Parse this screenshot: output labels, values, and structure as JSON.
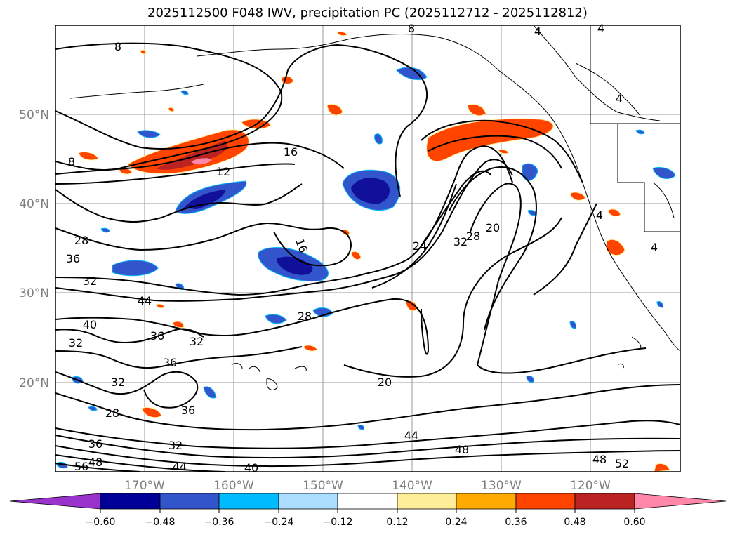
{
  "title": "2025112500 F048 IWV, precipitation PC (2025112712 - 2025112812)",
  "map": {
    "lon_labels": [
      "170°W",
      "160°W",
      "150°W",
      "140°W",
      "130°W",
      "120°W"
    ],
    "lat_labels": [
      "50°N",
      "40°N",
      "30°N",
      "20°N"
    ],
    "contour_labels": [
      "8",
      "8",
      "8",
      "4",
      "4",
      "4",
      "4",
      "4",
      "12",
      "16",
      "16",
      "24",
      "32",
      "28",
      "20",
      "28",
      "36",
      "32",
      "44",
      "40",
      "36",
      "32",
      "32",
      "36",
      "32",
      "28",
      "36",
      "28",
      "36",
      "32",
      "44",
      "40",
      "20",
      "44",
      "48",
      "48",
      "52",
      "48",
      "56"
    ]
  },
  "colorbar": {
    "tick_labels": [
      "−0.60",
      "−0.48",
      "−0.36",
      "−0.24",
      "−0.12",
      "0.12",
      "0.24",
      "0.36",
      "0.48",
      "0.60"
    ],
    "colors": [
      "#9933cc",
      "#000099",
      "#3355cc",
      "#00bbff",
      "#aaddff",
      "#ffffff",
      "#ffee99",
      "#ffaa00",
      "#ff4400",
      "#bb2222",
      "#ff88aa"
    ]
  },
  "colors": {
    "dark_blue": "#10109a",
    "mid_blue": "#3355cc",
    "cyan": "#00bbff",
    "light_blue": "#aaddff",
    "yellow": "#ffee99",
    "orange": "#ffaa00",
    "red_orange": "#ff4400",
    "dark_red": "#bb2222",
    "pink": "#ff88aa"
  }
}
